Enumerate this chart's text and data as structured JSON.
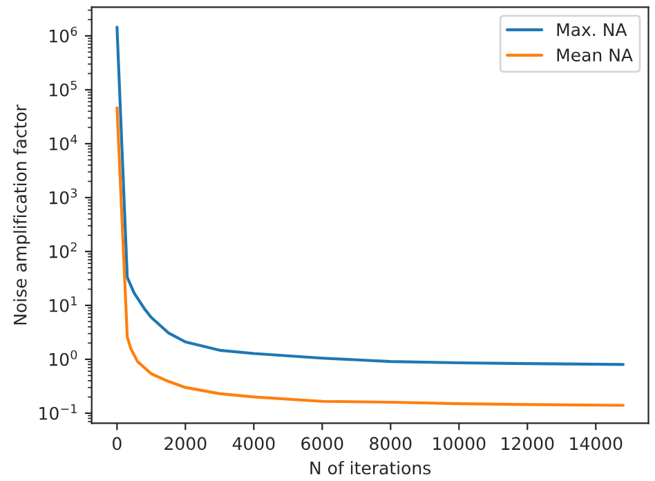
{
  "chart_data": {
    "type": "line",
    "xlabel": "N of iterations",
    "ylabel": "Noise amplification factor",
    "log": "y",
    "grid": false,
    "legend": "top right",
    "line_style": "solid",
    "marker": "none",
    "xlim": [
      -740,
      15540
    ],
    "xticks": [
      0,
      2000,
      4000,
      6000,
      8000,
      10000,
      12000,
      14000
    ],
    "ylim": [
      0.065,
      3400000
    ],
    "yticks": [
      {
        "value": 0.1,
        "label": "10$^{−1}$"
      },
      {
        "value": 1,
        "label": "10$^{0}$"
      },
      {
        "value": 10,
        "label": "10$^{1}$"
      },
      {
        "value": 100,
        "label": "10$^{2}$"
      },
      {
        "value": 1000,
        "label": "10$^{3}$"
      },
      {
        "value": 10000,
        "label": "10$^{4}$"
      },
      {
        "value": 100000,
        "label": "10$^{5}$"
      },
      {
        "value": 1000000,
        "label": "10$^{6}$"
      }
    ],
    "series": [
      {
        "name": "Max. NA",
        "color": "#1f77b4",
        "x": [
          0,
          300,
          500,
          800,
          1000,
          1500,
          2000,
          3000,
          4000,
          6000,
          8000,
          10000,
          12000,
          14800
        ],
        "values": [
          1450000,
          33,
          17,
          8.7,
          6,
          3.1,
          2.1,
          1.47,
          1.28,
          1.05,
          0.91,
          0.86,
          0.83,
          0.8
        ]
      },
      {
        "name": "Mean NA",
        "color": "#ff7f0e",
        "x": [
          0,
          300,
          400,
          600,
          1000,
          1500,
          2000,
          3000,
          4000,
          6000,
          8000,
          10000,
          12000,
          14800
        ],
        "values": [
          46000,
          2.6,
          1.6,
          0.91,
          0.54,
          0.39,
          0.3,
          0.23,
          0.2,
          0.166,
          0.16,
          0.15,
          0.145,
          0.14
        ]
      }
    ]
  }
}
